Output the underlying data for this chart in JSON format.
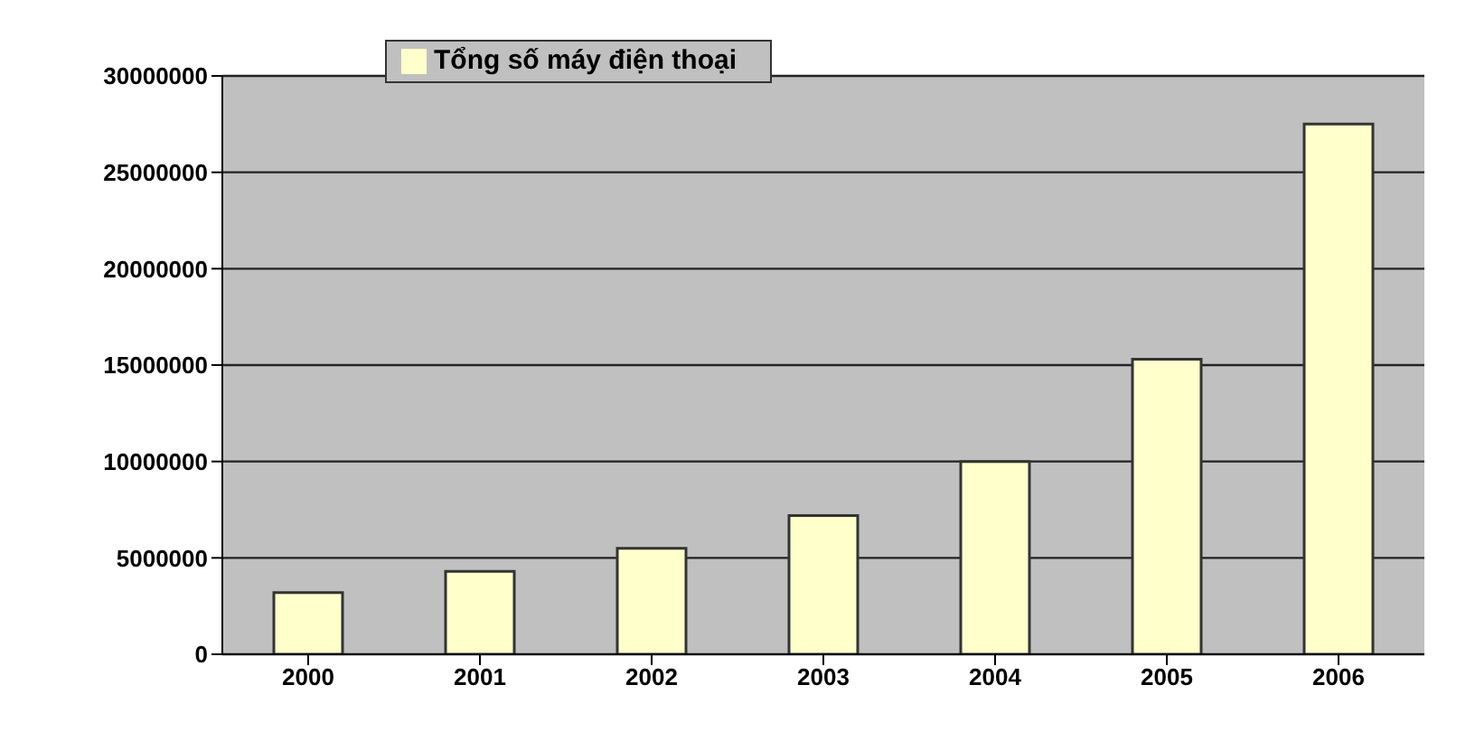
{
  "chart_data": {
    "type": "bar",
    "categories": [
      "2000",
      "2001",
      "2002",
      "2003",
      "2004",
      "2005",
      "2006"
    ],
    "series": [
      {
        "name": "Tổng số máy điện thoại",
        "color": "#ffffcc",
        "values": [
          3200000,
          4300000,
          5500000,
          7200000,
          10000000,
          15300000,
          27500000
        ]
      }
    ],
    "ylim": [
      0,
      30000000
    ],
    "yticks": [
      0,
      5000000,
      10000000,
      15000000,
      20000000,
      25000000,
      30000000
    ],
    "grid": "y",
    "legend": "top left"
  }
}
